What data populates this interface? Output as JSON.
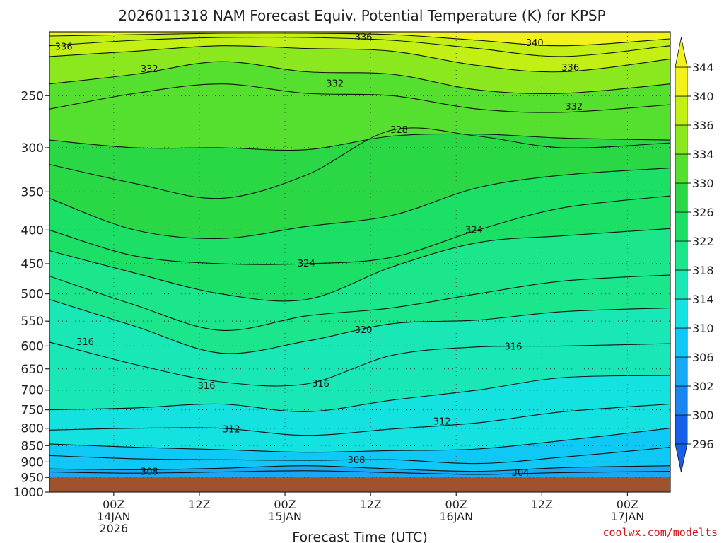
{
  "title": "2026011318 NAM Forecast Equiv. Potential Temperature (K) for KPSP",
  "xlabel": "Forecast Time (UTC)",
  "credit": "coolwx.com/modelts",
  "chart_data": {
    "type": "heatmap",
    "title": "2026011318 NAM Forecast Equiv. Potential Temperature (K) for KPSP",
    "xlabel": "Forecast Time (UTC)",
    "ylabel": "",
    "y_axis": {
      "unit": "hPa",
      "scale": "log",
      "range": [
        1000,
        200
      ],
      "ticks": [
        250,
        300,
        350,
        400,
        450,
        500,
        550,
        600,
        650,
        700,
        750,
        800,
        850,
        900,
        950,
        1000
      ]
    },
    "x_axis": {
      "range_hours": [
        -3,
        84
      ],
      "ticks": [
        {
          "hour": 6,
          "lines": [
            "00Z",
            "14JAN",
            "2026"
          ]
        },
        {
          "hour": 18,
          "lines": [
            "12Z"
          ]
        },
        {
          "hour": 30,
          "lines": [
            "00Z",
            "15JAN"
          ]
        },
        {
          "hour": 42,
          "lines": [
            "12Z"
          ]
        },
        {
          "hour": 54,
          "lines": [
            "00Z",
            "16JAN"
          ]
        },
        {
          "hour": 66,
          "lines": [
            "12Z"
          ]
        },
        {
          "hour": 78,
          "lines": [
            "00Z",
            "17JAN"
          ]
        }
      ]
    },
    "colorbar": {
      "levels": [
        296,
        300,
        302,
        306,
        310,
        314,
        318,
        322,
        326,
        330,
        334,
        336,
        340,
        344
      ],
      "colors": [
        "#1560e8",
        "#1c86f0",
        "#19a8f4",
        "#0fc8f5",
        "#14e2e0",
        "#19e8b6",
        "#1be68c",
        "#1be065",
        "#2ad845",
        "#55e030",
        "#8ce81e",
        "#c2ef14",
        "#f2f21a"
      ],
      "extend": "both"
    },
    "ground_level_hPa": 950,
    "ground_color": "#a0522d",
    "contour_interval": 2,
    "contour_levels": [
      {
        "theta": 304,
        "p": [
          932,
          936,
          932,
          928,
          934,
          940,
          934,
          930
        ]
      },
      {
        "theta": 306,
        "p": [
          922,
          925,
          920,
          912,
          922,
          930,
          918,
          912
        ]
      },
      {
        "theta": 308,
        "p": [
          880,
          890,
          893,
          895,
          893,
          905,
          885,
          855
        ]
      },
      {
        "theta": 310,
        "p": [
          845,
          855,
          862,
          870,
          865,
          860,
          835,
          800
        ]
      },
      {
        "theta": 312,
        "p": [
          805,
          800,
          800,
          820,
          802,
          785,
          755,
          735
        ]
      },
      {
        "theta": 314,
        "p": [
          750,
          745,
          735,
          755,
          725,
          700,
          670,
          665
        ]
      },
      {
        "theta": 316,
        "p": [
          592,
          640,
          680,
          685,
          620,
          602,
          600,
          595
        ]
      },
      {
        "theta": 318,
        "p": [
          510,
          560,
          615,
          590,
          555,
          548,
          532,
          525
        ]
      },
      {
        "theta": 320,
        "p": [
          470,
          520,
          568,
          540,
          525,
          500,
          478,
          468
        ]
      },
      {
        "theta": 322,
        "p": [
          430,
          465,
          500,
          510,
          455,
          418,
          408,
          398
        ]
      },
      {
        "theta": 324,
        "p": [
          400,
          438,
          450,
          450,
          440,
          400,
          370,
          355
        ]
      },
      {
        "theta": 326,
        "p": [
          358,
          400,
          412,
          395,
          380,
          345,
          330,
          322
        ]
      },
      {
        "theta": 328,
        "p": [
          318,
          340,
          358,
          330,
          282,
          288,
          300,
          295
        ]
      },
      {
        "theta": 330,
        "p": [
          292,
          300,
          300,
          302,
          288,
          286,
          290,
          292
        ]
      },
      {
        "theta": 332,
        "p": [
          262,
          248,
          240,
          248,
          250,
          262,
          265,
          258
        ]
      },
      {
        "theta": 334,
        "p": [
          240,
          232,
          222,
          230,
          232,
          245,
          248,
          240
        ]
      },
      {
        "theta": 336,
        "p": [
          218,
          214,
          210,
          212,
          214,
          225,
          230,
          220
        ]
      },
      {
        "theta": 338,
        "p": [
          210,
          206,
          204,
          204,
          206,
          212,
          218,
          210
        ]
      },
      {
        "theta": 340,
        "p": [
          203,
          202,
          201,
          201,
          202,
          206,
          210,
          205
        ]
      }
    ],
    "contour_hours": [
      -3,
      9,
      21,
      33,
      45,
      57,
      69,
      84
    ],
    "contour_labels": [
      {
        "text": "336",
        "hour": -1,
        "p": 211
      },
      {
        "text": "336",
        "hour": 41,
        "p": 204
      },
      {
        "text": "340",
        "hour": 65,
        "p": 208
      },
      {
        "text": "336",
        "hour": 70,
        "p": 227
      },
      {
        "text": "332",
        "hour": 11,
        "p": 228
      },
      {
        "text": "332",
        "hour": 37,
        "p": 240
      },
      {
        "text": "332",
        "hour": 70.5,
        "p": 260
      },
      {
        "text": "328",
        "hour": 46,
        "p": 282
      },
      {
        "text": "324",
        "hour": 56.5,
        "p": 400
      },
      {
        "text": "324",
        "hour": 33,
        "p": 450
      },
      {
        "text": "320",
        "hour": 41,
        "p": 568
      },
      {
        "text": "316",
        "hour": 2,
        "p": 592
      },
      {
        "text": "316",
        "hour": 62,
        "p": 602
      },
      {
        "text": "316",
        "hour": 35,
        "p": 685
      },
      {
        "text": "316",
        "hour": 19,
        "p": 690
      },
      {
        "text": "312",
        "hour": 52,
        "p": 782
      },
      {
        "text": "312",
        "hour": 22.5,
        "p": 803
      },
      {
        "text": "308",
        "hour": 40,
        "p": 895
      },
      {
        "text": "308",
        "hour": 11,
        "p": 932
      },
      {
        "text": "304",
        "hour": 63,
        "p": 936
      }
    ]
  }
}
